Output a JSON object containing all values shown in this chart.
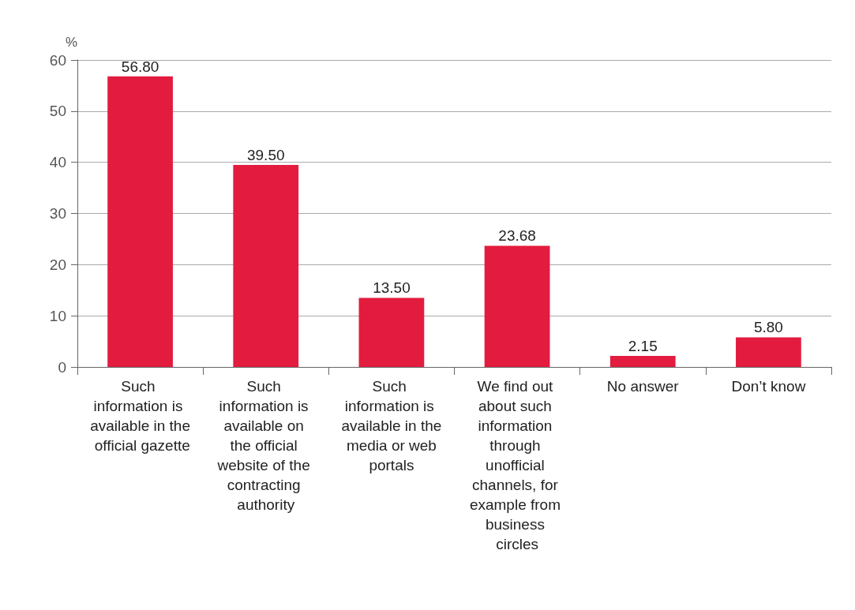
{
  "chart_data": {
    "type": "bar",
    "ylabel": "%",
    "categories": [
      "Such information is available in the official gazette",
      "Such information is available on the official website of the contracting authority",
      "Such information is available in the media or web portals",
      "We find out about such information through unofficial channels, for example from business circles",
      "No answer",
      "Don’t know"
    ],
    "values": [
      56.8,
      39.5,
      13.5,
      23.68,
      2.15,
      5.8
    ],
    "value_labels": [
      "56.80",
      "39.50",
      "13.50",
      "23.68",
      "2.15",
      "5.80"
    ],
    "color": "#e31c3f",
    "ylim": [
      0,
      60
    ],
    "yticks": [
      0,
      10,
      20,
      30,
      40,
      50,
      60
    ],
    "grid": "y"
  }
}
